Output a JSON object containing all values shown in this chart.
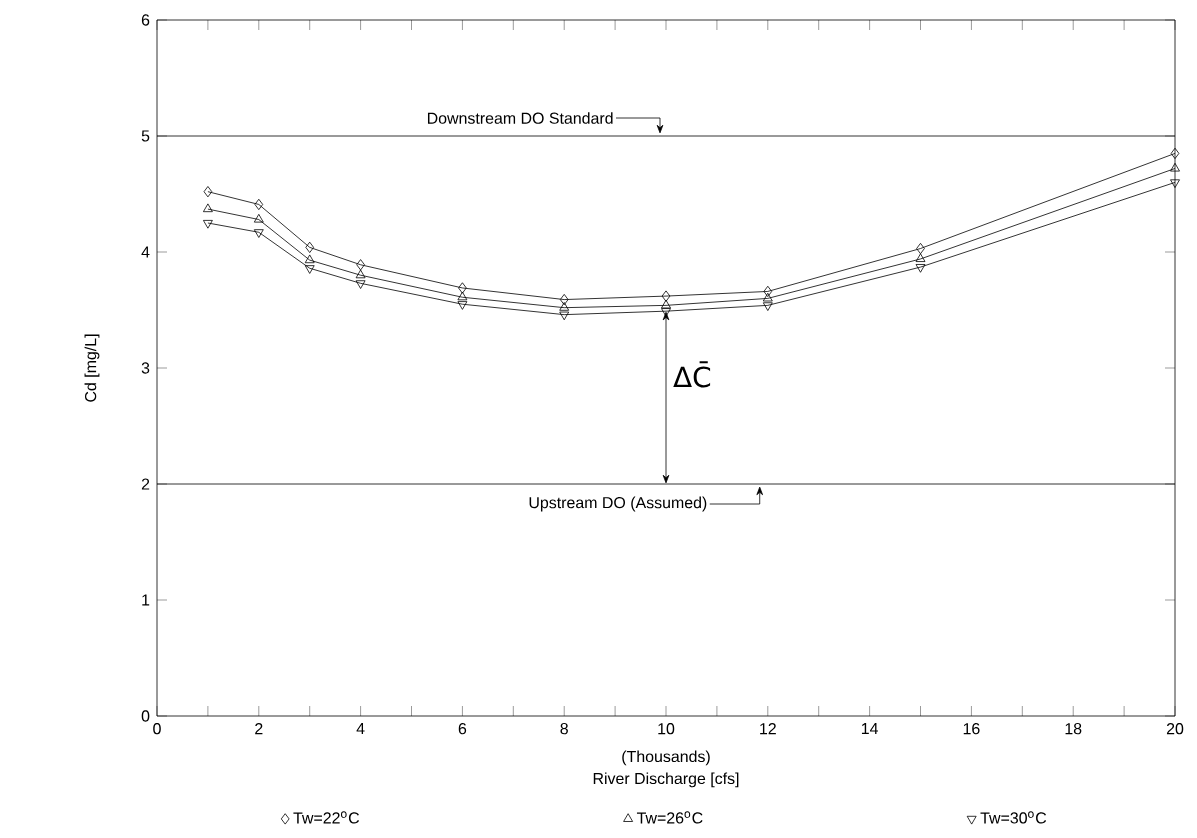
{
  "chart_data": {
    "type": "line",
    "x": [
      1,
      2,
      3,
      4,
      6,
      8,
      10,
      12,
      15,
      20
    ],
    "series": [
      {
        "name": "Tw=22$^{o}$C",
        "color": "#000000",
        "marker": "diamond",
        "values": [
          4.52,
          4.41,
          4.04,
          3.89,
          3.69,
          3.59,
          3.62,
          3.66,
          4.03,
          4.85
        ]
      },
      {
        "name": "Tw=26$^{o}$C",
        "color": "#000000",
        "marker": "triangle",
        "values": [
          4.37,
          4.28,
          3.93,
          3.8,
          3.61,
          3.52,
          3.54,
          3.6,
          3.94,
          4.72
        ]
      },
      {
        "name": "Tw=30$^{o}$C",
        "color": "#000000",
        "marker": "triangle down",
        "values": [
          4.25,
          4.17,
          3.86,
          3.73,
          3.55,
          3.46,
          3.49,
          3.54,
          3.87,
          4.6
        ]
      }
    ],
    "xlabel": "River Discharge [cfs]",
    "ylabel": "Cd [mg/L]",
    "xlim": [
      0,
      20
    ],
    "ylim": [
      0,
      6
    ],
    "xticks": [
      0,
      {
        "value": 1,
        "label": null
      },
      2,
      {
        "value": 3,
        "label": null
      },
      4,
      {
        "value": 5,
        "label": null
      },
      6,
      {
        "value": 7,
        "label": null
      },
      8,
      {
        "value": 9,
        "label": null
      },
      10,
      {
        "value": 11,
        "label": null
      },
      12,
      {
        "value": 13,
        "label": null
      },
      14,
      {
        "value": 15,
        "label": null
      },
      16,
      {
        "value": 17,
        "label": null
      },
      18,
      {
        "value": 19,
        "label": null
      },
      20
    ],
    "yticks": [
      0,
      1,
      2,
      3,
      4,
      5,
      6
    ],
    "ref_lines": [
      {
        "axis": "y",
        "value": 5,
        "label": "Downstream DO Standard"
      },
      {
        "axis": "y",
        "value": 2,
        "label": "Upstream DO (Assumed)"
      }
    ],
    "annotations": [
      "(Thousands)",
      "ΔC̄"
    ],
    "legend": "bottom",
    "grid": false,
    "line_style": "solid"
  }
}
